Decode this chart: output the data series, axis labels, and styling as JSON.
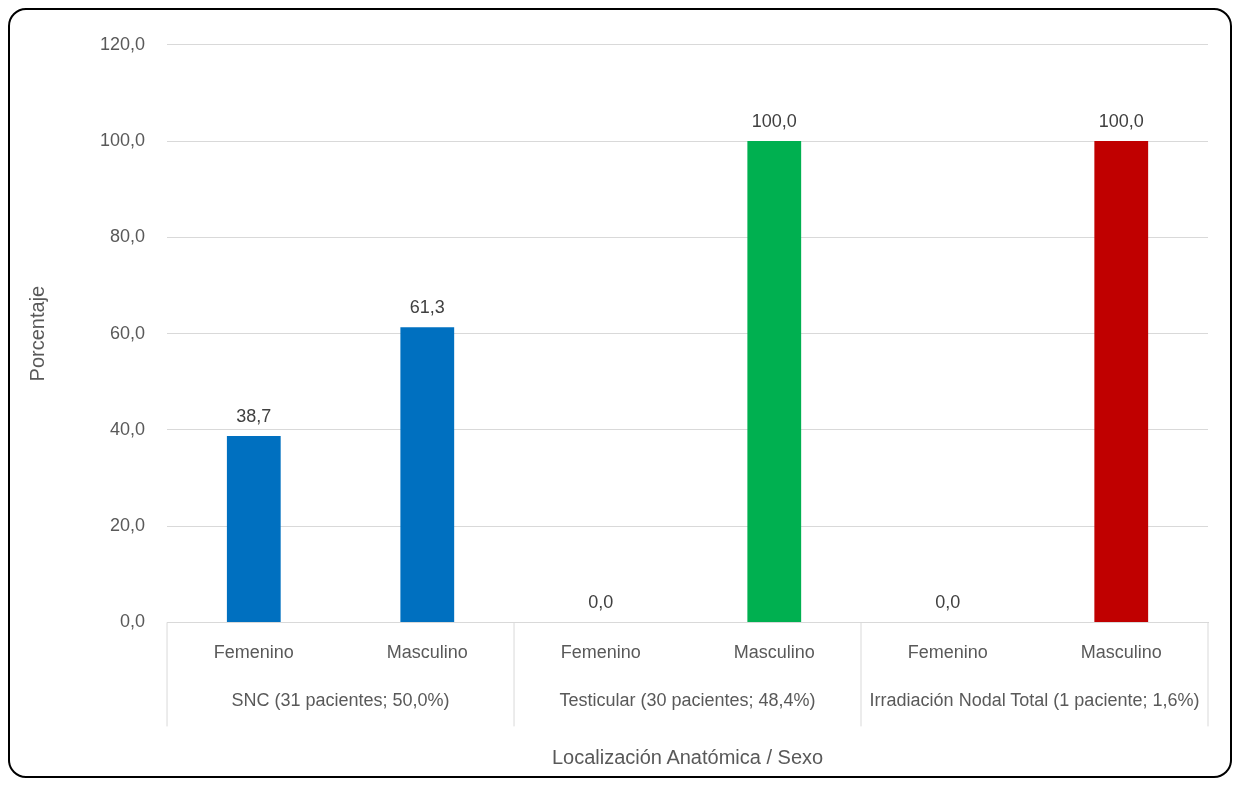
{
  "chart_data": {
    "type": "bar",
    "categories": [
      "Femenino",
      "Masculino",
      "Femenino",
      "Masculino",
      "Femenino",
      "Masculino"
    ],
    "values": [
      38.7,
      61.3,
      0,
      100,
      0,
      100
    ],
    "colors": [
      "#0070c0",
      "#0070c0",
      "#00b050",
      "#00b050",
      "#c00000",
      "#c00000"
    ],
    "value_labels": [
      "38,7",
      "61,3",
      "0,0",
      "100,0",
      "0,0",
      "100,0"
    ],
    "ylim": [
      0,
      120
    ],
    "yticks": [
      {
        "value": 0,
        "label": "0,0"
      },
      {
        "value": 20,
        "label": "20,0"
      },
      {
        "value": 40,
        "label": "40,0"
      },
      {
        "value": 60,
        "label": "60,0"
      },
      {
        "value": 80,
        "label": "80,0"
      },
      {
        "value": 100,
        "label": "100,0"
      },
      {
        "value": 120,
        "label": "120,0"
      }
    ],
    "ylabel": "Porcentaje",
    "xlabel": "Localización Anatómica / Sexo",
    "annotations": [
      "SNC (31 pacientes; 50,0%)",
      "Testicular (30 pacientes; 48,4%)",
      "Irradiación Nodal Total (1 paciente; 1,6%)"
    ],
    "grid": "y",
    "legend": false
  }
}
